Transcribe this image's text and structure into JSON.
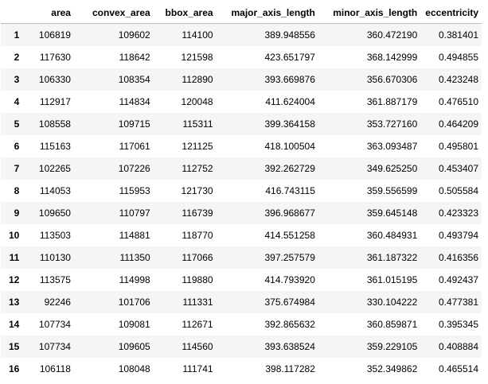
{
  "table": {
    "columns": [
      "area",
      "convex_area",
      "bbox_area",
      "major_axis_length",
      "minor_axis_length",
      "eccentricity"
    ],
    "rows": [
      {
        "index": "1",
        "cells": [
          "106819",
          "109602",
          "114100",
          "389.948556",
          "360.472190",
          "0.381401"
        ]
      },
      {
        "index": "2",
        "cells": [
          "117630",
          "118642",
          "121598",
          "423.651797",
          "368.142999",
          "0.494855"
        ]
      },
      {
        "index": "3",
        "cells": [
          "106330",
          "108354",
          "112890",
          "393.669876",
          "356.670306",
          "0.423248"
        ]
      },
      {
        "index": "4",
        "cells": [
          "112917",
          "114834",
          "120048",
          "411.624004",
          "361.887179",
          "0.476510"
        ]
      },
      {
        "index": "5",
        "cells": [
          "108558",
          "109715",
          "115311",
          "399.364158",
          "353.727160",
          "0.464209"
        ]
      },
      {
        "index": "6",
        "cells": [
          "115163",
          "117061",
          "121125",
          "418.100504",
          "363.093487",
          "0.495801"
        ]
      },
      {
        "index": "7",
        "cells": [
          "102265",
          "107226",
          "112752",
          "392.262729",
          "349.625250",
          "0.453407"
        ]
      },
      {
        "index": "8",
        "cells": [
          "114053",
          "115953",
          "121730",
          "416.743115",
          "359.556599",
          "0.505584"
        ]
      },
      {
        "index": "9",
        "cells": [
          "109650",
          "110797",
          "116739",
          "396.968677",
          "359.645148",
          "0.423323"
        ]
      },
      {
        "index": "10",
        "cells": [
          "113503",
          "114881",
          "118770",
          "414.551258",
          "360.484931",
          "0.493794"
        ]
      },
      {
        "index": "11",
        "cells": [
          "110130",
          "111350",
          "117066",
          "397.257579",
          "361.187322",
          "0.416356"
        ]
      },
      {
        "index": "12",
        "cells": [
          "113575",
          "114998",
          "119880",
          "414.793920",
          "361.015195",
          "0.492437"
        ]
      },
      {
        "index": "13",
        "cells": [
          "92246",
          "101706",
          "111331",
          "375.674984",
          "330.104222",
          "0.477381"
        ]
      },
      {
        "index": "14",
        "cells": [
          "107734",
          "109081",
          "112671",
          "392.865632",
          "360.859871",
          "0.395345"
        ]
      },
      {
        "index": "15",
        "cells": [
          "107734",
          "109605",
          "114560",
          "393.638524",
          "359.229105",
          "0.408884"
        ]
      },
      {
        "index": "16",
        "cells": [
          "106118",
          "108048",
          "111741",
          "398.117282",
          "352.349862",
          "0.465514"
        ]
      }
    ]
  }
}
